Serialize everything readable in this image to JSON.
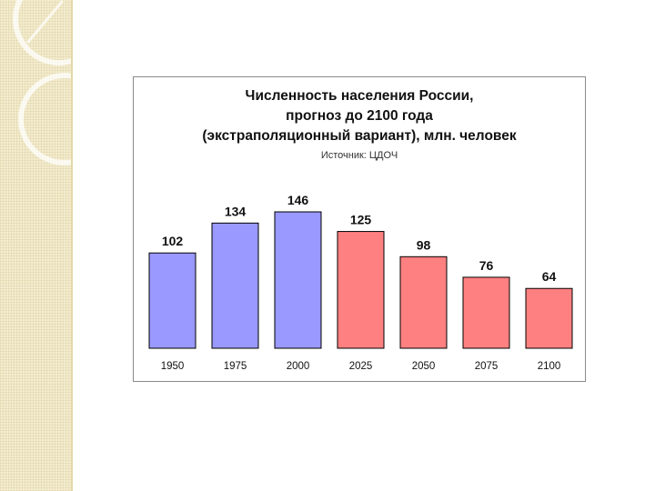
{
  "chart_data": {
    "type": "bar",
    "title_lines": [
      "Численность населения России,",
      "прогноз до 2100 года",
      "(экстраполяционный вариант), млн. человек"
    ],
    "subtitle": "Источник: ЦДОЧ",
    "categories": [
      "1950",
      "1975",
      "2000",
      "2025",
      "2050",
      "2075",
      "2100"
    ],
    "values": [
      102,
      134,
      146,
      125,
      98,
      76,
      64
    ],
    "bar_colors": [
      "#9999ff",
      "#9999ff",
      "#9999ff",
      "#ff8080",
      "#ff8080",
      "#ff8080",
      "#ff8080"
    ],
    "xlabel": "",
    "ylabel": "",
    "ylim": [
      0,
      160
    ],
    "grid": false,
    "legend": "none"
  },
  "colors": {
    "historical_bar": "#9999ff",
    "forecast_bar": "#ff8080",
    "background_strip": "#f4edcf"
  }
}
